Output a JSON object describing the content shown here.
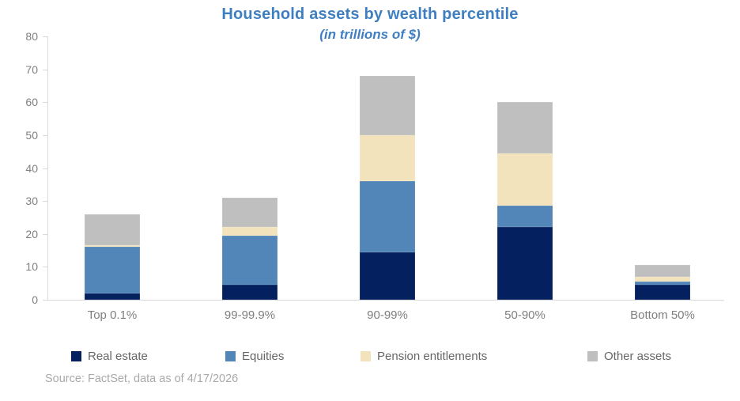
{
  "title": "Household assets by wealth percentile",
  "subtitle": "(in trillions of $)",
  "source_note": "Source: FactSet, data as of 4/17/2026",
  "colors": {
    "title_text": "#3f7fc1",
    "axis_text": "#7f7f7f",
    "legend_text": "#666666",
    "source_text": "#a9a9a9",
    "axis_line": "#d9d9d9",
    "background": "#ffffff"
  },
  "chart_data": {
    "type": "bar",
    "stacked": true,
    "title": "Household assets by wealth percentile",
    "subtitle": "(in trillions of $)",
    "xlabel": "",
    "ylabel": "",
    "ylim": [
      0,
      80
    ],
    "yticks": [
      0,
      10,
      20,
      30,
      40,
      50,
      60,
      70,
      80
    ],
    "grid": false,
    "legend_position": "bottom",
    "categories": [
      "Top 0.1%",
      "99-99.9%",
      "90-99%",
      "50-90%",
      "Bottom 50%"
    ],
    "series": [
      {
        "name": "Real estate",
        "color": "#04205e",
        "values": [
          2,
          4.5,
          14.5,
          22,
          4.5
        ]
      },
      {
        "name": "Equities",
        "color": "#5386b8",
        "values": [
          14,
          15,
          21.5,
          6.5,
          1
        ]
      },
      {
        "name": "Pension entitlements",
        "color": "#f2e3bd",
        "values": [
          0.5,
          2.5,
          14,
          16,
          1.5
        ]
      },
      {
        "name": "Other assets",
        "color": "#bfbfbf",
        "values": [
          9.5,
          9,
          18,
          15.5,
          3.5
        ]
      }
    ],
    "totals": [
      26,
      31,
      68,
      60,
      10.5
    ]
  }
}
